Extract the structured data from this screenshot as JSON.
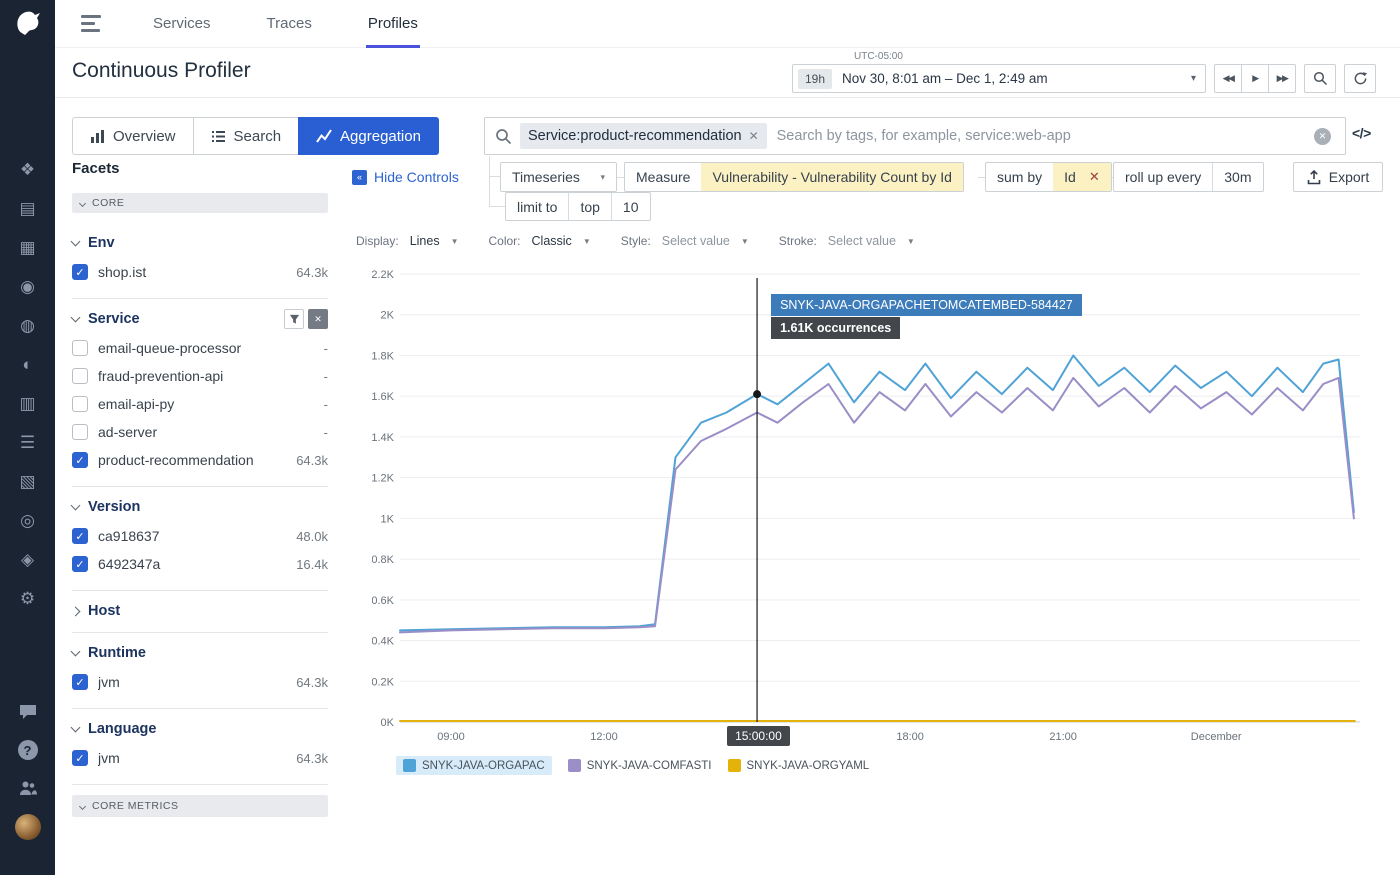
{
  "sidebar": {
    "logo": "datadog-logo",
    "rail": [
      {
        "name": "apm-icon",
        "glyph": "❖"
      },
      {
        "name": "events-icon",
        "glyph": "▤"
      },
      {
        "name": "metrics-icon",
        "glyph": "▦"
      },
      {
        "name": "watchdog-icon",
        "glyph": "◉"
      },
      {
        "name": "monitors-icon",
        "glyph": "◍"
      },
      {
        "name": "synthetics-icon",
        "glyph": "◐"
      },
      {
        "name": "dashboards-icon",
        "glyph": "▥"
      },
      {
        "name": "infrastructure-icon",
        "glyph": "☰"
      },
      {
        "name": "logs-icon",
        "glyph": "▧"
      },
      {
        "name": "ci-icon",
        "glyph": "◎"
      },
      {
        "name": "security-icon",
        "glyph": "◈"
      },
      {
        "name": "settings-icon",
        "glyph": "⚙"
      }
    ]
  },
  "nav": {
    "items": [
      {
        "label": "Services",
        "active": false
      },
      {
        "label": "Traces",
        "active": false
      },
      {
        "label": "Profiles",
        "active": true
      }
    ]
  },
  "header": {
    "title": "Continuous Profiler",
    "time_picker": {
      "timezone": "UTC-05:00",
      "duration": "19h",
      "range": "Nov 30, 8:01 am – Dec 1, 2:49 am",
      "caret": "▾"
    }
  },
  "tabs": [
    {
      "label": "Overview",
      "active": false
    },
    {
      "label": "Search",
      "active": false
    },
    {
      "label": "Aggregation",
      "active": true
    }
  ],
  "search": {
    "tag": "Service:product-recommendation",
    "tag_remove": "✕",
    "placeholder": "Search by tags, for example, service:web-app",
    "code_toggle": "</>"
  },
  "controls": {
    "hide_controls": "Hide Controls",
    "visualization": "Timeseries",
    "measure_label": "Measure",
    "measure_value": "Vulnerability - Vulnerability Count by Id",
    "sum_by_label": "sum by",
    "sum_by_value": "Id",
    "remove_x": "✕",
    "rollup_label": "roll up every",
    "rollup_value": "30m",
    "limit_label": "limit to",
    "limit_mode": "top",
    "limit_value": "10",
    "export_label": "Export"
  },
  "display_options": [
    {
      "label": "Display:",
      "value": "Lines",
      "placeholder": false
    },
    {
      "label": "Color:",
      "value": "Classic",
      "placeholder": false
    },
    {
      "label": "Style:",
      "value": "Select value",
      "placeholder": true
    },
    {
      "label": "Stroke:",
      "value": "Select value",
      "placeholder": true
    }
  ],
  "facets": {
    "title": "Facets",
    "core_label": "CORE",
    "core_metrics_label": "CORE METRICS",
    "sections": [
      {
        "name": "Env",
        "expanded": true,
        "has_filter": false,
        "items": [
          {
            "label": "shop.ist",
            "checked": true,
            "count": "64.3k"
          }
        ]
      },
      {
        "name": "Service",
        "expanded": true,
        "has_filter": true,
        "items": [
          {
            "label": "email-queue-processor",
            "checked": false,
            "count": "-"
          },
          {
            "label": "fraud-prevention-api",
            "checked": false,
            "count": "-"
          },
          {
            "label": "email-api-py",
            "checked": false,
            "count": "-"
          },
          {
            "label": "ad-server",
            "checked": false,
            "count": "-"
          },
          {
            "label": "product-recommendation",
            "checked": true,
            "count": "64.3k"
          }
        ]
      },
      {
        "name": "Version",
        "expanded": true,
        "has_filter": false,
        "items": [
          {
            "label": "ca918637",
            "checked": true,
            "count": "48.0k"
          },
          {
            "label": "6492347a",
            "checked": true,
            "count": "16.4k"
          }
        ]
      },
      {
        "name": "Host",
        "expanded": false,
        "has_filter": false,
        "items": []
      },
      {
        "name": "Runtime",
        "expanded": true,
        "has_filter": false,
        "items": [
          {
            "label": "jvm",
            "checked": true,
            "count": "64.3k"
          }
        ]
      },
      {
        "name": "Language",
        "expanded": true,
        "has_filter": false,
        "items": [
          {
            "label": "jvm",
            "checked": true,
            "count": "64.3k"
          }
        ]
      }
    ]
  },
  "chart_data": {
    "type": "line",
    "x_range": [
      8,
      26.82
    ],
    "y_range": [
      0,
      2.2
    ],
    "ylabel": "",
    "xlabel": "",
    "grid": true,
    "y_ticks": [
      {
        "v": 0,
        "label": "0K"
      },
      {
        "v": 0.2,
        "label": "0.2K"
      },
      {
        "v": 0.4,
        "label": "0.4K"
      },
      {
        "v": 0.6,
        "label": "0.6K"
      },
      {
        "v": 0.8,
        "label": "0.8K"
      },
      {
        "v": 1,
        "label": "1K"
      },
      {
        "v": 1.2,
        "label": "1.2K"
      },
      {
        "v": 1.4,
        "label": "1.4K"
      },
      {
        "v": 1.6,
        "label": "1.6K"
      },
      {
        "v": 1.8,
        "label": "1.8K"
      },
      {
        "v": 2,
        "label": "2K"
      },
      {
        "v": 2.2,
        "label": "2.2K"
      }
    ],
    "x_ticks": [
      {
        "v": 9,
        "label": "09:00"
      },
      {
        "v": 12,
        "label": "12:00"
      },
      {
        "v": 18,
        "label": "18:00"
      },
      {
        "v": 21,
        "label": "21:00"
      },
      {
        "v": 24,
        "label": "December"
      }
    ],
    "series": [
      {
        "name": "SNYK-JAVA-ORGAPACHETOMCATEMBED-584427",
        "color": "#4fa3d6",
        "points": [
          [
            8,
            0.45
          ],
          [
            9,
            0.455
          ],
          [
            10,
            0.46
          ],
          [
            11,
            0.465
          ],
          [
            12,
            0.465
          ],
          [
            12.7,
            0.47
          ],
          [
            13,
            0.48
          ],
          [
            13.4,
            1.3
          ],
          [
            13.9,
            1.47
          ],
          [
            14.4,
            1.52
          ],
          [
            15,
            1.61
          ],
          [
            15.4,
            1.56
          ],
          [
            15.9,
            1.66
          ],
          [
            16.4,
            1.76
          ],
          [
            16.9,
            1.57
          ],
          [
            17.4,
            1.72
          ],
          [
            17.9,
            1.63
          ],
          [
            18.3,
            1.76
          ],
          [
            18.8,
            1.59
          ],
          [
            19.3,
            1.72
          ],
          [
            19.8,
            1.61
          ],
          [
            20.3,
            1.74
          ],
          [
            20.8,
            1.63
          ],
          [
            21.2,
            1.8
          ],
          [
            21.7,
            1.65
          ],
          [
            22.2,
            1.74
          ],
          [
            22.7,
            1.62
          ],
          [
            23.2,
            1.75
          ],
          [
            23.7,
            1.64
          ],
          [
            24.2,
            1.72
          ],
          [
            24.7,
            1.6
          ],
          [
            25.2,
            1.74
          ],
          [
            25.7,
            1.62
          ],
          [
            26.1,
            1.76
          ],
          [
            26.4,
            1.78
          ],
          [
            26.7,
            1.03
          ]
        ]
      },
      {
        "name": "SNYK-JAVA-COMFASTI",
        "color": "#9b8dc6",
        "points": [
          [
            8,
            0.44
          ],
          [
            9,
            0.45
          ],
          [
            10,
            0.455
          ],
          [
            11,
            0.46
          ],
          [
            12,
            0.46
          ],
          [
            12.7,
            0.465
          ],
          [
            13,
            0.47
          ],
          [
            13.4,
            1.24
          ],
          [
            13.9,
            1.38
          ],
          [
            14.4,
            1.44
          ],
          [
            15,
            1.52
          ],
          [
            15.4,
            1.47
          ],
          [
            15.9,
            1.57
          ],
          [
            16.4,
            1.66
          ],
          [
            16.9,
            1.47
          ],
          [
            17.4,
            1.62
          ],
          [
            17.9,
            1.53
          ],
          [
            18.3,
            1.66
          ],
          [
            18.8,
            1.5
          ],
          [
            19.3,
            1.62
          ],
          [
            19.8,
            1.52
          ],
          [
            20.3,
            1.64
          ],
          [
            20.8,
            1.53
          ],
          [
            21.2,
            1.69
          ],
          [
            21.7,
            1.55
          ],
          [
            22.2,
            1.64
          ],
          [
            22.7,
            1.52
          ],
          [
            23.2,
            1.65
          ],
          [
            23.7,
            1.54
          ],
          [
            24.2,
            1.62
          ],
          [
            24.7,
            1.51
          ],
          [
            25.2,
            1.64
          ],
          [
            25.7,
            1.53
          ],
          [
            26.1,
            1.66
          ],
          [
            26.4,
            1.69
          ],
          [
            26.7,
            1.0
          ]
        ]
      },
      {
        "name": "SNYK-JAVA-ORGYAML",
        "color": "#e3b20b",
        "points": [
          [
            8,
            0.005
          ],
          [
            26.72,
            0.005
          ]
        ]
      }
    ],
    "legend": [
      {
        "label": "SNYK-JAVA-ORGAPAC",
        "color": "#4fa3d6",
        "highlighted": true
      },
      {
        "label": "SNYK-JAVA-COMFASTI",
        "color": "#9b8dc6",
        "highlighted": false
      },
      {
        "label": "SNYK-JAVA-ORGYAML",
        "color": "#e3b20b",
        "highlighted": false
      }
    ],
    "cursor": {
      "x": 15,
      "time_label": "15:00:00",
      "dot_value": 1.61
    },
    "tooltip": {
      "series": "SNYK-JAVA-ORGAPACHETOMCATEMBED-584427",
      "value": "1.61K occurrences"
    }
  }
}
